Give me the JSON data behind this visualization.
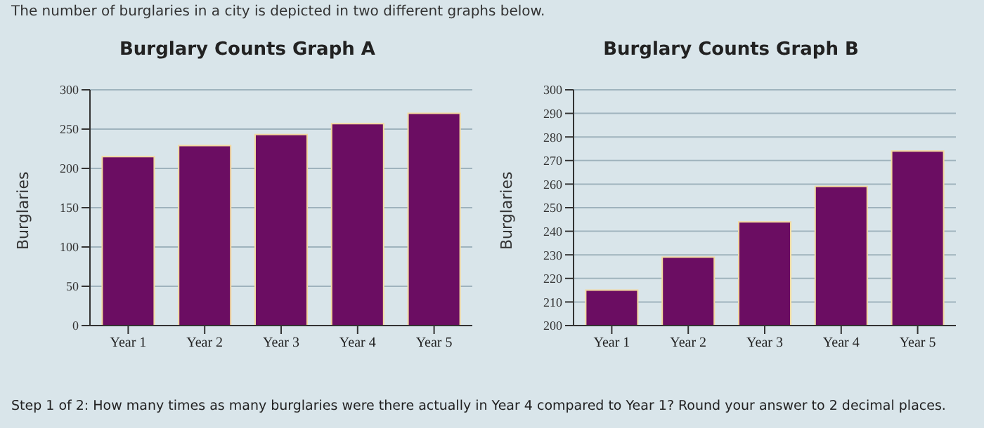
{
  "chart_data": [
    {
      "type": "bar",
      "title": "Burglary Counts Graph A",
      "ylabel": "Burglaries",
      "categories": [
        "Year 1",
        "Year 2",
        "Year 3",
        "Year 4",
        "Year 5"
      ],
      "values": [
        215,
        229,
        243,
        257,
        270
      ],
      "color": "#6b0d62",
      "ylim": [
        0,
        300
      ],
      "yticks": [
        0,
        50,
        100,
        150,
        200,
        250,
        300
      ],
      "grid": "y",
      "annotations": [
        "The number of burglaries in a city is depicted in two different graphs below."
      ]
    },
    {
      "type": "bar",
      "title": "Burglary Counts Graph B",
      "ylabel": "Burglaries",
      "categories": [
        "Year 1",
        "Year 2",
        "Year 3",
        "Year 4",
        "Year 5"
      ],
      "values": [
        215,
        229,
        244,
        259,
        274
      ],
      "color": "#6b0d62",
      "ylim": [
        200,
        300
      ],
      "yticks": [
        200,
        210,
        220,
        230,
        240,
        250,
        260,
        270,
        280,
        290,
        300
      ],
      "grid": "y",
      "annotations": [
        "Step 1 of 2: How many times as many burglaries were there actually in Year 4 compared to Year 1? Round your answer to 2 decimal places."
      ]
    }
  ]
}
